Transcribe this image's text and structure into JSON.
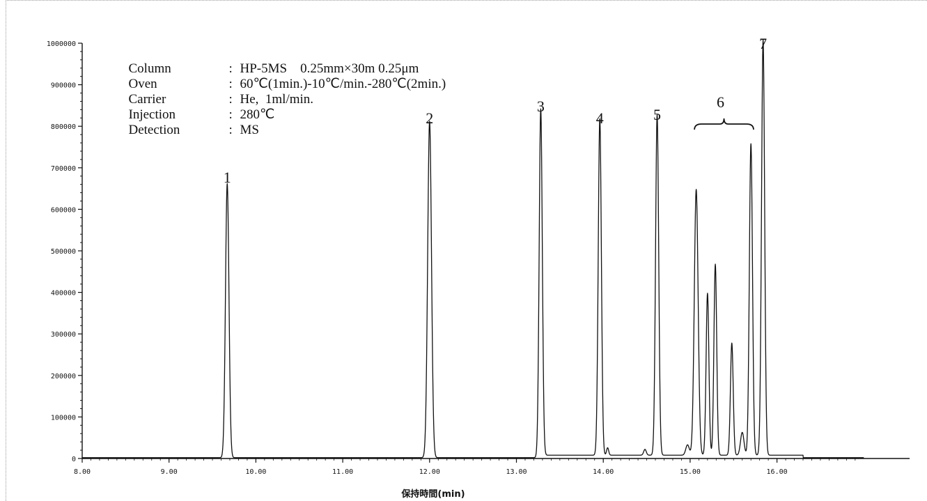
{
  "method": [
    {
      "label": "Column",
      "sep": ":",
      "value": "HP-5MS　0.25mm×30m 0.25μm"
    },
    {
      "label": "Oven",
      "sep": ":",
      "value": "60℃(1min.)-10℃/min.-280℃(2min.)"
    },
    {
      "label": "Carrier",
      "sep": ":",
      "value": "He,  1ml/min."
    },
    {
      "label": "Injection",
      "sep": ":",
      "value": "280℃"
    },
    {
      "label": "Detection",
      "sep": ":",
      "value": "MS"
    }
  ],
  "chart_data": {
    "type": "line",
    "title": "",
    "xlabel": "保持時間(min)",
    "ylabel": "",
    "xlim": [
      8.0,
      17.0
    ],
    "ylim": [
      0,
      1000000
    ],
    "x_ticks": [
      8.0,
      9.0,
      10.0,
      11.0,
      12.0,
      13.0,
      14.0,
      15.0,
      16.0
    ],
    "x_tick_labels": [
      "8.00",
      "9.00",
      "10.00",
      "11.00",
      "12.00",
      "13.00",
      "14.00",
      "15.00",
      "16.00"
    ],
    "y_ticks": [
      0,
      100000,
      200000,
      300000,
      400000,
      500000,
      600000,
      700000,
      800000,
      900000,
      1000000
    ],
    "y_tick_labels": [
      "0",
      "100000",
      "200000",
      "300000",
      "400000",
      "500000",
      "600000",
      "700000",
      "800000",
      "900000",
      "1000000"
    ],
    "grid": false,
    "series": [
      {
        "peaks": [
          {
            "label": "1",
            "rt": 9.67,
            "height": 660000,
            "width": 0.02
          },
          {
            "label": "2",
            "rt": 12.0,
            "height": 810000,
            "width": 0.022
          },
          {
            "label": "3",
            "rt": 13.28,
            "height": 840000,
            "width": 0.018
          },
          {
            "label": "4",
            "rt": 13.96,
            "height": 810000,
            "width": 0.018
          },
          {
            "label": "5",
            "rt": 14.62,
            "height": 820000,
            "width": 0.018
          },
          {
            "label": "",
            "rt": 14.48,
            "height": 14000,
            "width": 0.015
          },
          {
            "label": "",
            "rt": 14.05,
            "height": 18000,
            "width": 0.012
          },
          {
            "label": "",
            "rt": 14.97,
            "height": 25000,
            "width": 0.02
          },
          {
            "label": "",
            "rt": 15.07,
            "height": 640000,
            "width": 0.022
          },
          {
            "label": "",
            "rt": 15.2,
            "height": 390000,
            "width": 0.016
          },
          {
            "label": "",
            "rt": 15.29,
            "height": 460000,
            "width": 0.016
          },
          {
            "label": "",
            "rt": 15.48,
            "height": 270000,
            "width": 0.016
          },
          {
            "label": "",
            "rt": 15.6,
            "height": 55000,
            "width": 0.02
          },
          {
            "label": "",
            "rt": 15.7,
            "height": 750000,
            "width": 0.018
          },
          {
            "label": "7",
            "rt": 15.84,
            "height": 1000000,
            "width": 0.018
          }
        ]
      }
    ],
    "annotations": [
      {
        "text": "1",
        "x": 9.67
      },
      {
        "text": "2",
        "x": 12.0
      },
      {
        "text": "3",
        "x": 13.28
      },
      {
        "text": "4",
        "x": 13.96
      },
      {
        "text": "5",
        "x": 14.62
      },
      {
        "text": "6",
        "x": 15.35
      },
      {
        "text": "7",
        "x": 15.84
      }
    ]
  }
}
